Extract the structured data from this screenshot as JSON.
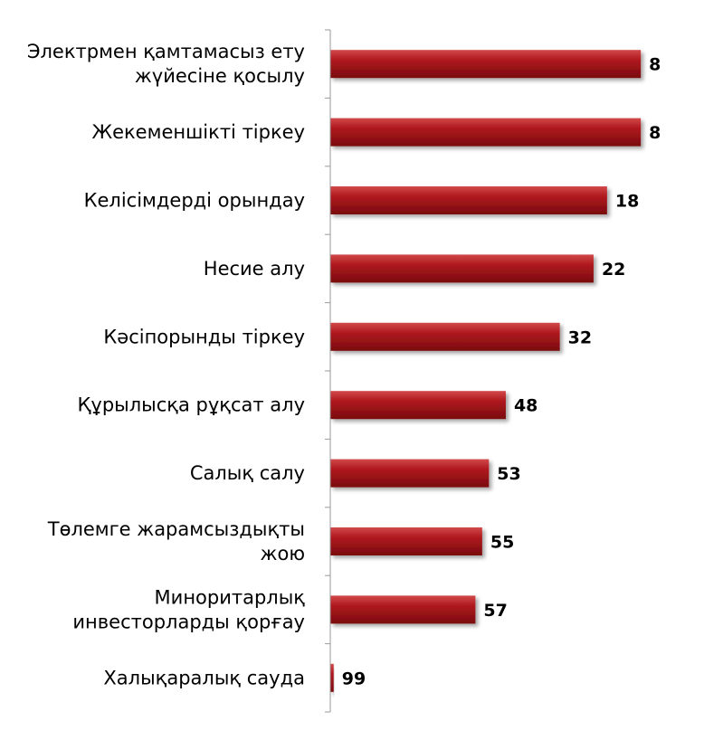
{
  "chart_data": {
    "type": "bar",
    "orientation": "horizontal",
    "reversed_scale": true,
    "categories": [
      "Электрмен қамтамасыз ету жүйесіне қосылу",
      "Жекеменшікті тіркеу",
      "Келісімдерді орындау",
      "Несие алу",
      "Кәсіпорынды тіркеу",
      "Құрылысқа рұқсат алу",
      "Салық салу",
      "Төлемге жарамсыздықты жою",
      "Миноритарлық инвесторларды қорғау",
      "Халықаралық сауда"
    ],
    "category_lines": [
      [
        "Электрмен қамтамасыз ету",
        "жүйесіне қосылу"
      ],
      [
        "Жекеменшікті тіркеу"
      ],
      [
        "Келісімдерді орындау"
      ],
      [
        "Несие алу"
      ],
      [
        "Кәсіпорынды тіркеу"
      ],
      [
        "Құрылысқа рұқсат алу"
      ],
      [
        "Салық салу"
      ],
      [
        "Төлемге жарамсыздықты",
        "жою"
      ],
      [
        "Миноритарлық",
        "инвесторларды қорғау"
      ],
      [
        "Халықаралық сауда"
      ]
    ],
    "values": [
      8,
      8,
      18,
      22,
      32,
      48,
      53,
      55,
      57,
      99
    ],
    "title": "",
    "xlabel": "",
    "ylabel": "",
    "bar_color": "#a50f15",
    "axis_color": "#9a9a9a",
    "grid": false,
    "legend": "none"
  }
}
